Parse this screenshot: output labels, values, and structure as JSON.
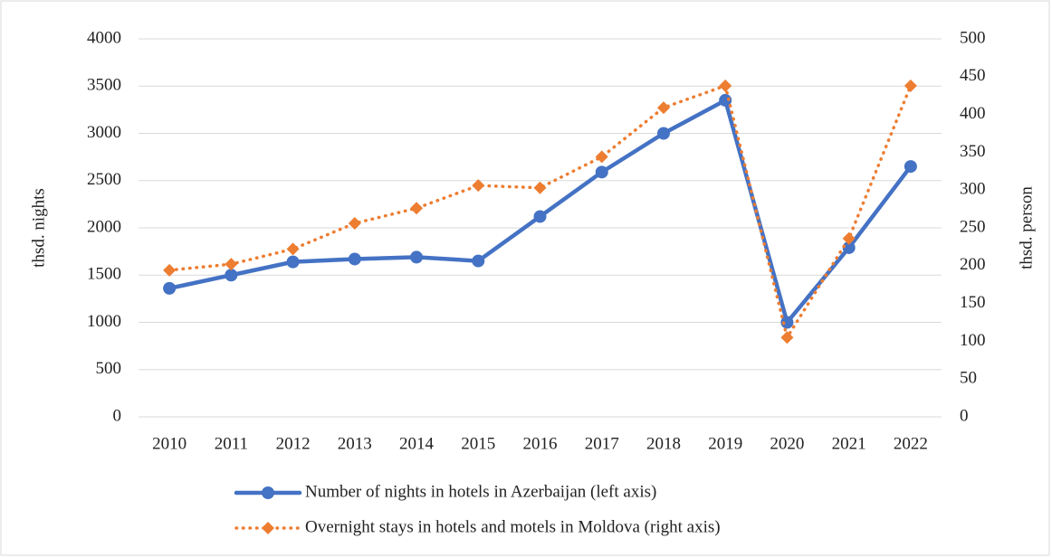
{
  "chart_data": {
    "type": "line",
    "categories": [
      "2010",
      "2011",
      "2012",
      "2013",
      "2014",
      "2015",
      "2016",
      "2017",
      "2018",
      "2019",
      "2020",
      "2021",
      "2022"
    ],
    "ylabel": "thsd. nights",
    "y2label": "thsd. person",
    "ylim": [
      0,
      4000
    ],
    "yticks": [
      0,
      500,
      1000,
      1500,
      2000,
      2500,
      3000,
      3500,
      4000
    ],
    "y2lim": [
      0,
      500
    ],
    "y2ticks": [
      0,
      50,
      100,
      150,
      200,
      250,
      300,
      350,
      400,
      450,
      500
    ],
    "grid": true,
    "legend": "bottom",
    "series": [
      {
        "name": "Number of nights in hotels in Azerbaijan (left axis)",
        "color": "#4472c4",
        "axis": "y",
        "values": [
          1360,
          1500,
          1640,
          1670,
          1690,
          1650,
          2120,
          2590,
          3000,
          3350,
          1000,
          1790,
          2650
        ]
      },
      {
        "name": "Overnight stays in hotels and motels in Moldova (right axis)",
        "color": "#ed7d31",
        "axis": "y2",
        "values": [
          194,
          202,
          222,
          256,
          276,
          306,
          303,
          344,
          409,
          438,
          105,
          236,
          438
        ]
      }
    ]
  }
}
